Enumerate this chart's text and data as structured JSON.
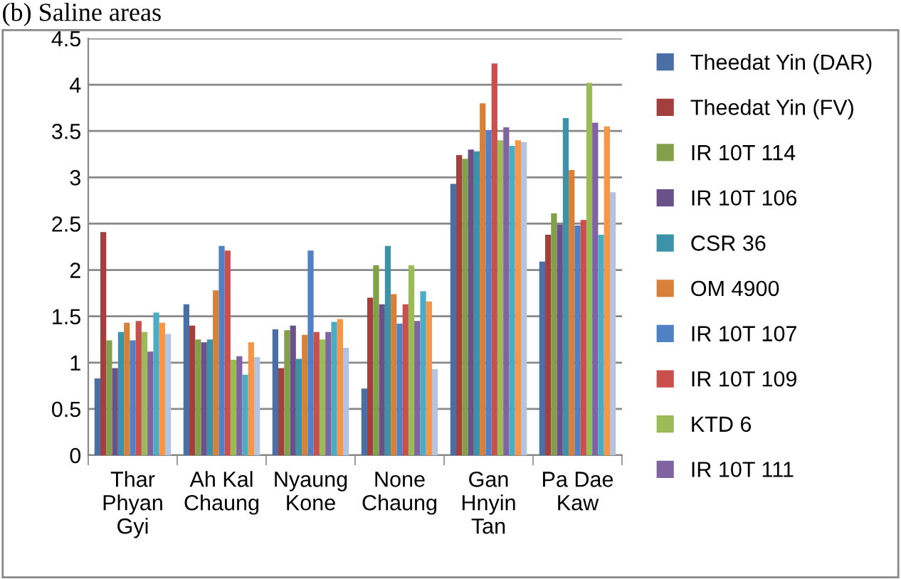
{
  "chart_data": {
    "type": "bar",
    "title": "(b) Saline areas",
    "categories": [
      "Thar\nPhyan\nGyi",
      "Ah Kal\nChaung",
      "Nyaung\nKone",
      "None\nChaung",
      "Gan\nHnyin\nTan",
      "Pa Dae\nKaw"
    ],
    "series": [
      {
        "name": "Theedat Yin (DAR)",
        "color": "#4a6fa5",
        "values": [
          0.83,
          1.63,
          1.36,
          0.72,
          2.93,
          2.09
        ]
      },
      {
        "name": "Theedat Yin (FV)",
        "color": "#a33f3c",
        "values": [
          2.41,
          1.4,
          0.94,
          1.7,
          3.24,
          2.38
        ]
      },
      {
        "name": "IR 10T 114",
        "color": "#82a04a",
        "values": [
          1.24,
          1.25,
          1.35,
          2.05,
          3.2,
          2.61
        ]
      },
      {
        "name": "IR 10T 106",
        "color": "#6b5189",
        "values": [
          0.94,
          1.22,
          1.4,
          1.63,
          3.3,
          2.49
        ]
      },
      {
        "name": "CSR 36",
        "color": "#3c92a8",
        "values": [
          1.33,
          1.25,
          1.04,
          2.26,
          3.28,
          3.64
        ]
      },
      {
        "name": "OM 4900",
        "color": "#d6803a",
        "values": [
          1.43,
          1.78,
          1.3,
          1.74,
          3.8,
          3.08
        ]
      },
      {
        "name": "IR 10T 107",
        "color": "#4f81c4",
        "values": [
          1.24,
          2.26,
          2.21,
          1.42,
          3.51,
          2.48
        ]
      },
      {
        "name": "IR 10T 109",
        "color": "#c9504d",
        "values": [
          1.45,
          2.21,
          1.33,
          1.63,
          4.23,
          2.54
        ]
      },
      {
        "name": "KTD 6",
        "color": "#9bbb59",
        "values": [
          1.33,
          1.03,
          1.25,
          2.05,
          3.4,
          4.02
        ]
      },
      {
        "name": "IR 10T 111",
        "color": "#8064a2",
        "values": [
          1.12,
          1.07,
          1.33,
          1.45,
          3.54,
          3.59
        ]
      },
      {
        "color": "#4bacc6",
        "values": [
          1.54,
          0.87,
          1.44,
          1.77,
          3.34,
          2.38
        ]
      },
      {
        "color": "#f79646",
        "values": [
          1.43,
          1.22,
          1.47,
          1.66,
          3.4,
          3.55
        ]
      },
      {
        "color": "#b3c3e0",
        "values": [
          1.31,
          1.06,
          1.16,
          0.93,
          3.38,
          2.84
        ]
      }
    ],
    "ylim": [
      0,
      4.5
    ],
    "yticks": [
      0,
      0.5,
      1,
      1.5,
      2,
      2.5,
      3,
      3.5,
      4,
      4.5
    ],
    "grid": "y",
    "legend": "right"
  }
}
